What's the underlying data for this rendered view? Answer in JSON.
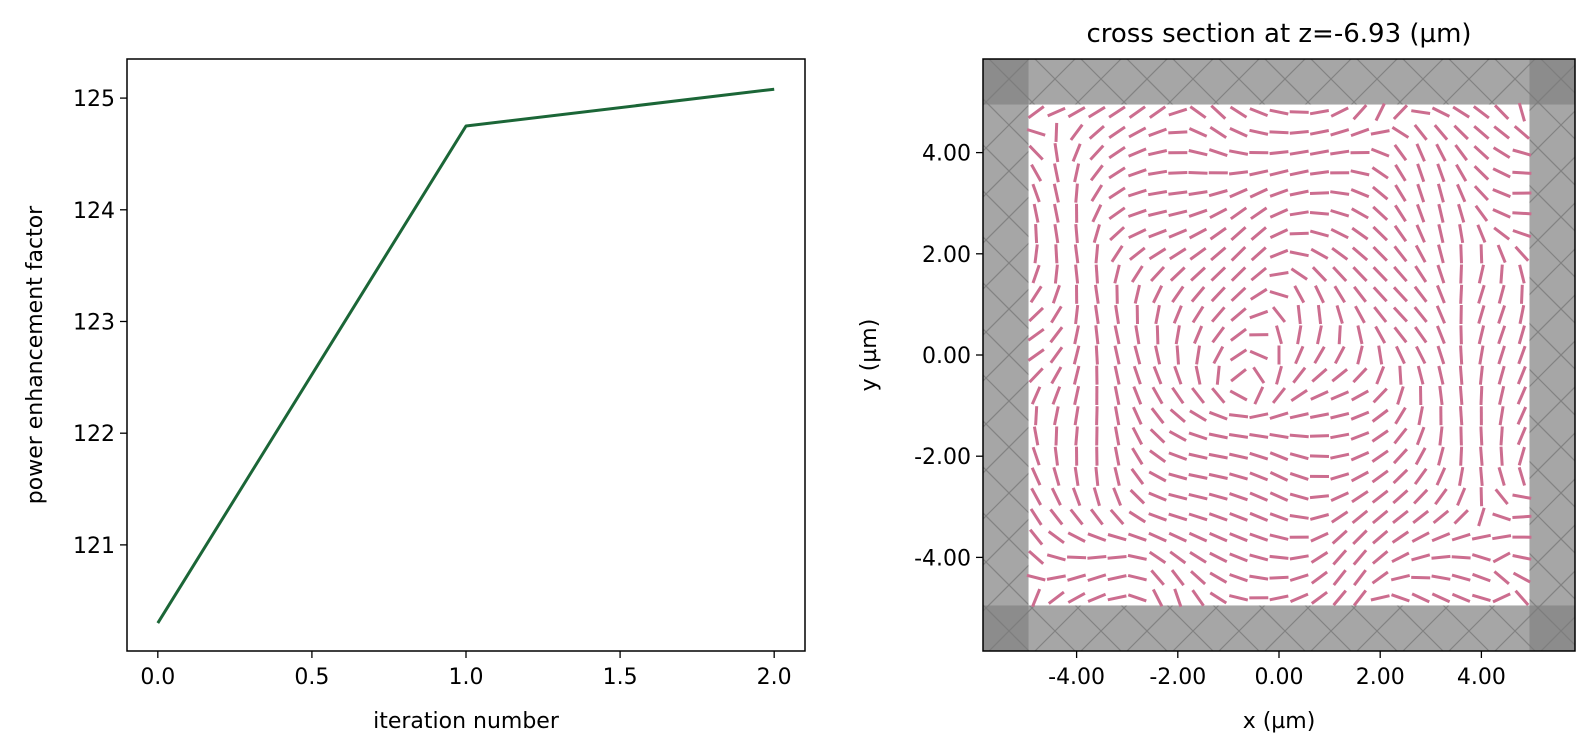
{
  "chart_data": [
    {
      "type": "line",
      "title": "",
      "xlabel": "iteration number",
      "ylabel": "power enhancement factor",
      "xlim": [
        -0.1,
        2.1
      ],
      "ylim": [
        120.05,
        125.35
      ],
      "grid": false,
      "legend": "none",
      "xticks": [
        {
          "value": 0.0,
          "label": "0.0"
        },
        {
          "value": 0.5,
          "label": "0.5"
        },
        {
          "value": 1.0,
          "label": "1.0"
        },
        {
          "value": 1.5,
          "label": "1.5"
        },
        {
          "value": 2.0,
          "label": "2.0"
        }
      ],
      "yticks": [
        {
          "value": 121,
          "label": "121"
        },
        {
          "value": 122,
          "label": "122"
        },
        {
          "value": 123,
          "label": "123"
        },
        {
          "value": 124,
          "label": "124"
        },
        {
          "value": 125,
          "label": "125"
        }
      ],
      "series": [
        {
          "x": [
            0,
            1,
            2
          ],
          "values": [
            120.3,
            124.75,
            125.08
          ],
          "color": "#1b6637"
        }
      ]
    },
    {
      "type": "vector-field",
      "title": "cross section at z=-6.93 (µm)",
      "xlabel": "x (µm)",
      "ylabel": "y (µm)",
      "xlim": [
        -5.85,
        5.85
      ],
      "ylim": [
        -5.85,
        5.85
      ],
      "grid": false,
      "legend": "none",
      "domain_half_width": 4.95,
      "pml_color": "#a6a6a6",
      "pml_corner_color": "#8c8c8c",
      "hatch_color": "#7a7a7a",
      "arrow_color": "#cc6d8f",
      "arrow_grid": {
        "count": 25,
        "min": -4.8,
        "max": 4.8
      },
      "xticks": [
        {
          "value": -4,
          "label": "-4.00"
        },
        {
          "value": -2,
          "label": "-2.00"
        },
        {
          "value": 0,
          "label": "0.00"
        },
        {
          "value": 2,
          "label": "2.00"
        },
        {
          "value": 4,
          "label": "4.00"
        }
      ],
      "yticks": [
        {
          "value": -4,
          "label": "-4.00"
        },
        {
          "value": -2,
          "label": "-2.00"
        },
        {
          "value": 0,
          "label": "0.00"
        },
        {
          "value": 2,
          "label": "2.00"
        },
        {
          "value": 4,
          "label": "4.00"
        }
      ]
    }
  ]
}
